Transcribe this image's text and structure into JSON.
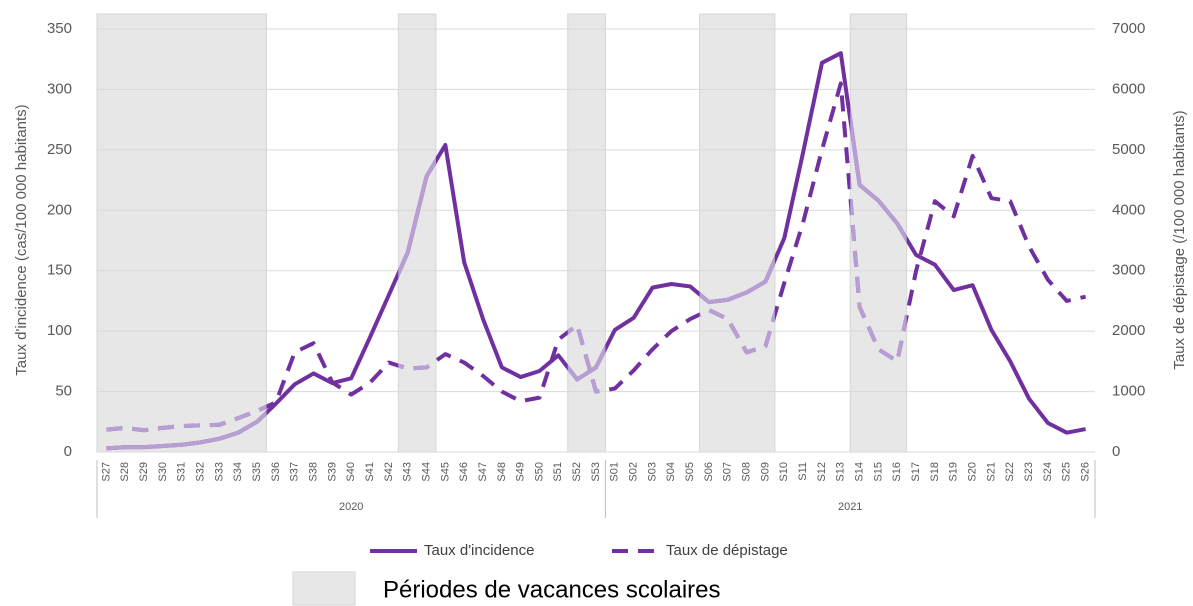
{
  "chart_data": {
    "type": "line",
    "y_label": "Taux d'incidence (cas/100 000 habitants)",
    "y2_label": "Taux de dépistage (/100 000 habitants)",
    "categories": [
      "S27",
      "S28",
      "S29",
      "S30",
      "S31",
      "S32",
      "S33",
      "S34",
      "S35",
      "S36",
      "S37",
      "S38",
      "S39",
      "S40",
      "S41",
      "S42",
      "S43",
      "S44",
      "S45",
      "S46",
      "S47",
      "S48",
      "S49",
      "S50",
      "S51",
      "S52",
      "S53",
      "S01",
      "S02",
      "S03",
      "S04",
      "S05",
      "S06",
      "S07",
      "S08",
      "S09",
      "S10",
      "S11",
      "S12",
      "S13",
      "S14",
      "S15",
      "S16",
      "S17",
      "S18",
      "S19",
      "S20",
      "S21",
      "S22",
      "S23",
      "S24",
      "S25",
      "S26"
    ],
    "groups": [
      {
        "label": "2020",
        "start": "S27",
        "end": "S53"
      },
      {
        "label": "2021",
        "start": "S01",
        "end": "S26"
      }
    ],
    "series": [
      {
        "name": "Taux d'incidence",
        "color": "#7030a0",
        "vacation_color": "#b79fd3",
        "dash": false,
        "values": [
          3,
          4,
          4,
          5,
          6,
          8,
          11,
          16,
          25,
          40,
          56,
          65,
          57,
          61,
          95,
          130,
          165,
          228,
          254,
          157,
          110,
          70,
          62,
          67,
          80,
          60,
          70,
          101,
          111,
          136,
          139,
          137,
          124,
          126,
          132,
          141,
          177,
          248,
          322,
          330,
          221,
          208,
          189,
          163,
          155,
          134,
          138,
          101,
          75,
          44,
          24,
          16,
          19
        ]
      },
      {
        "name": "Taux de dépistage",
        "color": "#7030a0",
        "vacation_color": "#b79fd3",
        "dash": true,
        "axis": "y2",
        "values": [
          370,
          400,
          360,
          400,
          430,
          440,
          450,
          560,
          680,
          820,
          1650,
          1800,
          1150,
          950,
          1150,
          1480,
          1380,
          1400,
          1620,
          1480,
          1260,
          1000,
          840,
          900,
          1860,
          2100,
          1000,
          1050,
          1350,
          1700,
          2000,
          2200,
          2350,
          2200,
          1650,
          1750,
          2800,
          3800,
          5000,
          6100,
          2400,
          1700,
          1500,
          3000,
          4150,
          3900,
          4900,
          4200,
          4150,
          3400,
          2850,
          2500,
          2570
        ]
      }
    ],
    "vacation_periods": [
      [
        "S27",
        "S35"
      ],
      [
        "S43",
        "S44"
      ],
      [
        "S52",
        "S53"
      ],
      [
        "S06",
        "S09"
      ],
      [
        "S14",
        "S16"
      ]
    ],
    "vacation_fill": "#e7e7e7",
    "vacation_label": "Périodes de vacances scolaires",
    "ylim": [
      0,
      350
    ],
    "yticks": [
      0,
      50,
      100,
      150,
      200,
      250,
      300,
      350
    ],
    "y2lim": [
      0,
      7000
    ],
    "y2ticks": [
      0,
      1000,
      2000,
      3000,
      4000,
      5000,
      6000,
      7000
    ],
    "grid": true
  }
}
